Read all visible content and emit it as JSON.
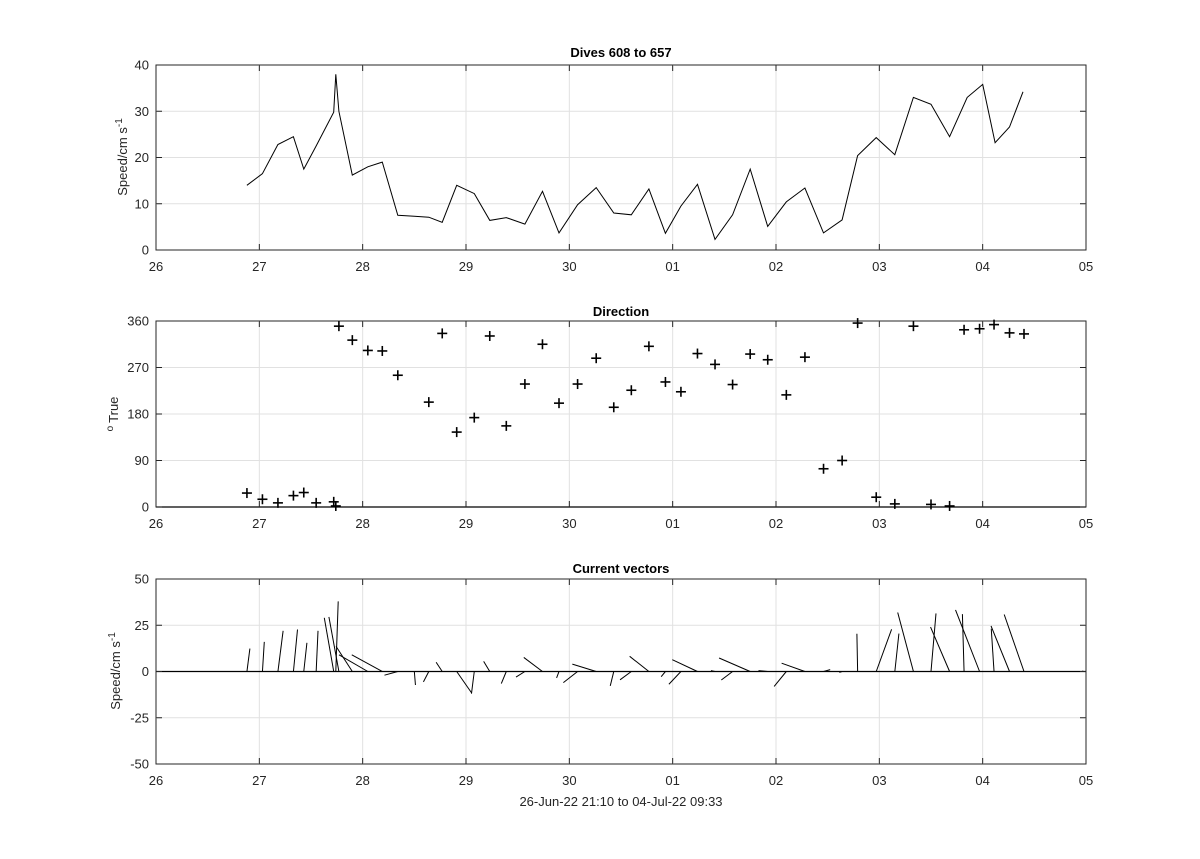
{
  "figure": {
    "xlabel": "26-Jun-22 21:10 to 04-Jul-22 09:33"
  },
  "chart_data": [
    {
      "type": "line",
      "title": "Dives 608 to 657",
      "ylabel": "Speed/cm s",
      "ylabel_superscript": "-1",
      "xlim": [
        26,
        35
      ],
      "x_tick_labels": [
        "26",
        "27",
        "28",
        "29",
        "30",
        "01",
        "02",
        "03",
        "04",
        "05"
      ],
      "ylim": [
        0,
        40
      ],
      "y_ticks": [
        0,
        10,
        20,
        30,
        40
      ],
      "grid": true,
      "series": [
        {
          "x": [
            26.88,
            27.03,
            27.18,
            27.33,
            27.43,
            27.55,
            27.72,
            27.74,
            27.77,
            27.9,
            28.05,
            28.19,
            28.34,
            28.5,
            28.64,
            28.77,
            28.91,
            29.08,
            29.23,
            29.39,
            29.57,
            29.74,
            29.9,
            30.08,
            30.26,
            30.43,
            30.6,
            30.77,
            30.93,
            31.08,
            31.24,
            31.41,
            31.58,
            31.75,
            31.92,
            32.1,
            32.28,
            32.46,
            32.64,
            32.79,
            32.97,
            33.15,
            33.33,
            33.5,
            33.68,
            33.85,
            34.0,
            34.12,
            34.26,
            34.39
          ],
          "values": [
            14.0,
            16.5,
            22.8,
            24.5,
            17.5,
            22.5,
            29.8,
            38.0,
            30.0,
            16.2,
            18.0,
            19.0,
            7.5,
            7.3,
            7.1,
            6.0,
            14.0,
            12.2,
            6.4,
            7.0,
            5.6,
            12.7,
            3.7,
            9.8,
            13.5,
            8.0,
            7.6,
            13.2,
            3.6,
            9.5,
            14.2,
            2.3,
            7.6,
            17.5,
            5.1,
            10.4,
            13.4,
            3.7,
            6.5,
            20.4,
            24.3,
            20.6,
            33.0,
            31.5,
            24.5,
            33.0,
            35.8,
            23.2,
            26.6,
            34.2
          ]
        }
      ]
    },
    {
      "type": "scatter",
      "title": "Direction",
      "ylabel": "True",
      "ylabel_prefix": "o",
      "xlim": [
        26,
        35
      ],
      "x_tick_labels": [
        "26",
        "27",
        "28",
        "29",
        "30",
        "01",
        "02",
        "03",
        "04",
        "05"
      ],
      "ylim": [
        0,
        360
      ],
      "y_ticks": [
        0,
        90,
        180,
        270,
        360
      ],
      "grid": true,
      "marker": "+",
      "series": [
        {
          "x": [
            26.88,
            27.03,
            27.18,
            27.33,
            27.43,
            27.55,
            27.72,
            27.74,
            27.77,
            27.9,
            28.05,
            28.19,
            28.34,
            28.64,
            28.77,
            28.91,
            29.08,
            29.23,
            29.39,
            29.57,
            29.74,
            29.9,
            30.08,
            30.26,
            30.43,
            30.6,
            30.77,
            30.93,
            31.08,
            31.24,
            31.41,
            31.58,
            31.75,
            31.92,
            32.1,
            32.28,
            32.46,
            32.64,
            32.79,
            32.97,
            33.15,
            33.33,
            33.5,
            33.68,
            33.82,
            33.97,
            34.11,
            34.26,
            34.4
          ],
          "values": [
            27,
            15,
            8,
            22,
            28,
            8,
            10,
            2,
            350,
            323,
            303,
            302,
            255,
            203,
            336,
            145,
            173,
            331,
            157,
            238,
            315,
            201,
            238,
            288,
            193,
            226,
            311,
            242,
            223,
            297,
            276,
            237,
            296,
            285,
            217,
            290,
            74,
            90,
            356,
            19,
            6,
            350,
            5,
            2,
            343,
            345,
            353,
            337,
            335
          ]
        }
      ]
    },
    {
      "type": "quiver",
      "title": "Current vectors",
      "ylabel": "Speed/cm s",
      "ylabel_superscript": "-1",
      "xlim": [
        26,
        35
      ],
      "x_tick_labels": [
        "26",
        "27",
        "28",
        "29",
        "30",
        "01",
        "02",
        "03",
        "04",
        "05"
      ],
      "ylim": [
        -50,
        50
      ],
      "y_ticks": [
        -50,
        -25,
        0,
        25,
        50
      ],
      "grid": true,
      "note_units": "vectors drawn from the baseline in speed units; east/north components",
      "vectors": [
        {
          "x": 26.88,
          "u": 1.6,
          "v": 12.4
        },
        {
          "x": 27.03,
          "u": 1.0,
          "v": 16.0
        },
        {
          "x": 27.18,
          "u": 2.8,
          "v": 22.0
        },
        {
          "x": 27.33,
          "u": 2.2,
          "v": 22.7
        },
        {
          "x": 27.43,
          "u": 1.7,
          "v": 15.5
        },
        {
          "x": 27.55,
          "u": 1.0,
          "v": 22.0
        },
        {
          "x": 27.72,
          "u": -5.1,
          "v": 29.0
        },
        {
          "x": 27.74,
          "u": 1.3,
          "v": 37.9
        },
        {
          "x": 27.77,
          "u": -5.4,
          "v": 29.5
        },
        {
          "x": 27.9,
          "u": -8.8,
          "v": 13.6
        },
        {
          "x": 28.05,
          "u": -15.6,
          "v": 9.0
        },
        {
          "x": 28.19,
          "u": -16.5,
          "v": 9.0
        },
        {
          "x": 28.34,
          "u": -7.2,
          "v": -2.0
        },
        {
          "x": 28.5,
          "u": 0.6,
          "v": -7.3
        },
        {
          "x": 28.64,
          "u": -2.9,
          "v": -5.6
        },
        {
          "x": 28.77,
          "u": -3.3,
          "v": 5.0
        },
        {
          "x": 28.91,
          "u": 8.0,
          "v": -11.5
        },
        {
          "x": 29.08,
          "u": -1.5,
          "v": -12.0
        },
        {
          "x": 29.23,
          "u": -3.3,
          "v": 5.5
        },
        {
          "x": 29.39,
          "u": -2.7,
          "v": -6.5
        },
        {
          "x": 29.57,
          "u": -4.8,
          "v": -3.0
        },
        {
          "x": 29.74,
          "u": -10.1,
          "v": 7.6
        },
        {
          "x": 29.9,
          "u": -1.3,
          "v": -3.5
        },
        {
          "x": 30.08,
          "u": -7.7,
          "v": -6.0
        },
        {
          "x": 30.26,
          "u": -12.9,
          "v": 4.0
        },
        {
          "x": 30.43,
          "u": -1.9,
          "v": -7.8
        },
        {
          "x": 30.6,
          "u": -6.1,
          "v": -4.5
        },
        {
          "x": 30.77,
          "u": -10.4,
          "v": 8.2
        },
        {
          "x": 30.93,
          "u": -2.3,
          "v": -2.8
        },
        {
          "x": 31.08,
          "u": -6.5,
          "v": -6.9
        },
        {
          "x": 31.24,
          "u": -13.6,
          "v": 6.4
        },
        {
          "x": 31.41,
          "u": -2.2,
          "v": 0.5
        },
        {
          "x": 31.58,
          "u": -6.1,
          "v": -4.6
        },
        {
          "x": 31.75,
          "u": -16.8,
          "v": 7.3
        },
        {
          "x": 31.92,
          "u": -5.0,
          "v": 0.5
        },
        {
          "x": 32.1,
          "u": -6.6,
          "v": -8.1
        },
        {
          "x": 32.28,
          "u": -12.6,
          "v": 4.5
        },
        {
          "x": 32.46,
          "u": 3.6,
          "v": 1.0
        },
        {
          "x": 32.64,
          "u": -1.5,
          "v": -0.5
        },
        {
          "x": 32.79,
          "u": -0.4,
          "v": 20.4
        },
        {
          "x": 32.97,
          "u": 8.3,
          "v": 22.8
        },
        {
          "x": 33.15,
          "u": 2.2,
          "v": 20.5
        },
        {
          "x": 33.33,
          "u": -8.5,
          "v": 31.9
        },
        {
          "x": 33.5,
          "u": 2.7,
          "v": 31.4
        },
        {
          "x": 33.68,
          "u": -10.3,
          "v": 24.0
        },
        {
          "x": 33.82,
          "u": -0.9,
          "v": 31.0
        },
        {
          "x": 33.97,
          "u": -13.0,
          "v": 33.3
        },
        {
          "x": 34.11,
          "u": -1.5,
          "v": 23.1
        },
        {
          "x": 34.26,
          "u": -10.0,
          "v": 24.6
        },
        {
          "x": 34.4,
          "u": -10.7,
          "v": 30.8
        },
        {
          "x": 34.98,
          "u": -1.0,
          "v": 0.2
        }
      ]
    }
  ]
}
